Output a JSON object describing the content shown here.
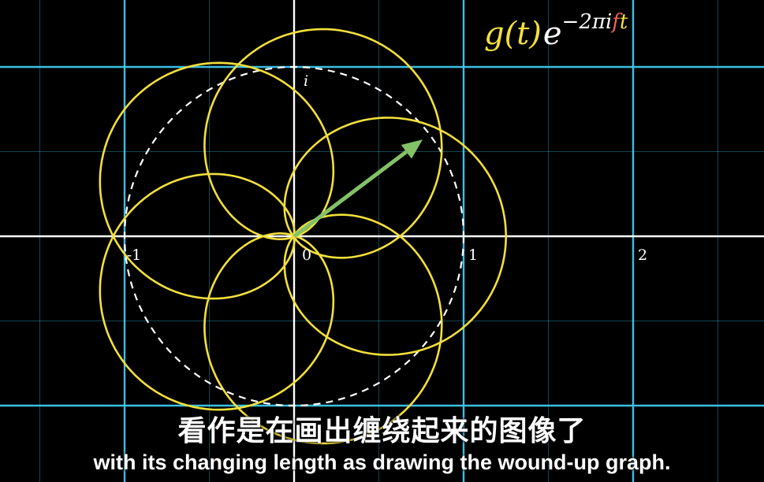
{
  "formula": {
    "base": "g(t)",
    "exp_base": "e",
    "exp_prefix": "−2πi",
    "exp_f": "f",
    "exp_t": "t",
    "colors": {
      "yellow": "#f3e03b",
      "white": "#ffffff",
      "red": "#f0625a",
      "exp_t_color": "#f3e03b"
    }
  },
  "axes": {
    "tick_labels": [
      "-1",
      "0",
      "1",
      "2"
    ],
    "imag_label": "i"
  },
  "vector_angle_deg": 37,
  "vector_length": 0.95,
  "colors": {
    "grid": "#3ec9ef",
    "axis": "#ffffff",
    "curve": "#f3e03b",
    "circle": "#ffffff",
    "vector": "#83c167"
  },
  "subtitles": {
    "chinese": "看作是在画出缠绕起来的图像了",
    "english": "with its changing length as drawing the wound-up graph."
  }
}
